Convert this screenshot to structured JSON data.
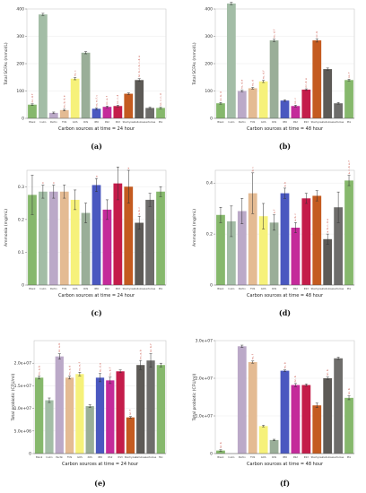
{
  "bar_colors": [
    "#86b86c",
    "#a3bda6",
    "#bba9c8",
    "#e4bb93",
    "#f6f17a",
    "#9aae98",
    "#4a58c0",
    "#c42a9a",
    "#c41c4a",
    "#c45b20",
    "#5d5a56",
    "#6e6d6b"
  ],
  "chart_data": [
    {
      "panel_label": "(a)",
      "type": "bar",
      "xlabel": "Carbon sources at time = 24 hour",
      "ylabel": "Total SCFAs (mmol/L)",
      "categories": [
        "Blank",
        "Inulin",
        "Pectin",
        "FOS",
        "GOS",
        "XOS",
        "IMO",
        "RS2",
        "RS3",
        "Stachyose",
        "Cellulose",
        "Lactulose",
        "Mix"
      ],
      "ylim": [
        0,
        400
      ],
      "yticks": [
        0,
        100,
        200,
        300,
        400
      ],
      "values": [
        50,
        380,
        20,
        30,
        145,
        240,
        35,
        42,
        45,
        90,
        140,
        38,
        38
      ],
      "errors": [
        3,
        4,
        3,
        3,
        4,
        4,
        3,
        3,
        3,
        3,
        5,
        3,
        3
      ],
      "labels": [
        "nc, d, f",
        "",
        "",
        "nc, b, d, e",
        "nc, c",
        "",
        "nc, e, f, c",
        "nc, e, f",
        "nc, c, d",
        "",
        "nc, b, c, b, c, d, e",
        "",
        "nc, c, c, d"
      ]
    },
    {
      "panel_label": "(b)",
      "type": "bar",
      "xlabel": "Carbon sources at time = 48 hour",
      "ylabel": "Total SCFAs (mmol/L)",
      "categories": [
        "Blank",
        "Inulin",
        "Pectin",
        "FOS",
        "GOS",
        "XOS",
        "IMO",
        "RS2",
        "RS3",
        "Stachyose",
        "Cellulose",
        "Lactulose",
        "Mix"
      ],
      "ylim": [
        0,
        400
      ],
      "yticks": [
        0,
        100,
        200,
        300,
        400
      ],
      "values": [
        55,
        420,
        100,
        110,
        135,
        285,
        65,
        45,
        105,
        285,
        180,
        55,
        140
      ],
      "errors": [
        3,
        4,
        3,
        3,
        4,
        4,
        3,
        3,
        3,
        6,
        4,
        3,
        3
      ],
      "labels": [
        "nc, b, d",
        "",
        "nc, d, e",
        "nc, d",
        "nc, d, f",
        "nc, d, f",
        "",
        "nc, c",
        "nc, d, e",
        "nc, b",
        "",
        "",
        "nc, f"
      ]
    },
    {
      "panel_label": "(c)",
      "type": "bar",
      "xlabel": "Carbon sources at time = 24 hour",
      "ylabel": "Ammonia (mg/mL)",
      "categories": [
        "Blank",
        "Inulin",
        "Pectin",
        "FOS",
        "GOS",
        "XOS",
        "IMO",
        "RS2",
        "RS3",
        "Stachyose",
        "Cellulose",
        "Lactulose",
        "Mix"
      ],
      "ylim": [
        0,
        0.35
      ],
      "yticks": [
        0.0,
        0.1,
        0.2,
        0.3
      ],
      "values": [
        0.275,
        0.285,
        0.285,
        0.285,
        0.26,
        0.22,
        0.305,
        0.23,
        0.31,
        0.3,
        0.19,
        0.26,
        0.285
      ],
      "errors": [
        0.06,
        0.02,
        0.02,
        0.02,
        0.03,
        0.03,
        0.02,
        0.03,
        0.05,
        0.05,
        0.02,
        0.02,
        0.015
      ],
      "labels": [
        "",
        "a",
        "a",
        "",
        "",
        "",
        "a",
        "",
        "",
        "a",
        "a, b, c",
        "",
        ""
      ]
    },
    {
      "panel_label": "(d)",
      "type": "bar",
      "xlabel": "Carbon sources at time = 48 hour",
      "ylabel": "Ammonia (mg/mL)",
      "categories": [
        "Blank",
        "Inulin",
        "Pectin",
        "FOS",
        "GOS",
        "XOS",
        "IMO",
        "RS2",
        "RS3",
        "Stachyose",
        "Cellulose",
        "Lactulose",
        "Mix"
      ],
      "ylim": [
        0,
        0.45
      ],
      "yticks": [
        0.0,
        0.2,
        0.4
      ],
      "values": [
        0.275,
        0.25,
        0.29,
        0.36,
        0.27,
        0.245,
        0.36,
        0.225,
        0.34,
        0.35,
        0.18,
        0.305,
        0.41
      ],
      "errors": [
        0.03,
        0.06,
        0.05,
        0.08,
        0.05,
        0.03,
        0.02,
        0.02,
        0.02,
        0.02,
        0.02,
        0.06,
        0.02
      ],
      "labels": [
        "",
        "",
        "",
        "b, c",
        "",
        "a, f",
        "a, b",
        "a, b, c",
        "",
        "",
        "a, b, c, d, e",
        "",
        "a, c, d, e, f"
      ]
    },
    {
      "panel_label": "(e)",
      "type": "bar",
      "xlabel": "Carbon sources at time = 24 hour",
      "ylabel": "Total probiotic (CFU/ml)",
      "categories": [
        "Blank",
        "Inulin",
        "Pectin",
        "FOS",
        "GOS",
        "XOS",
        "IMO",
        "RS2",
        "RS3",
        "Stachyose",
        "Cellulose",
        "Lactulose",
        "Mix"
      ],
      "ylim": [
        0,
        25000000
      ],
      "yticks": [
        0,
        5000000,
        10000000,
        15000000,
        20000000
      ],
      "ytick_labels": [
        "0",
        "5.0e+06",
        "1.0e+07",
        "1.5e+07",
        "2.0e+07"
      ],
      "values": [
        16800000,
        11800000,
        21500000,
        16800000,
        17600000,
        10500000,
        16800000,
        16200000,
        18200000,
        8000000,
        19600000,
        20600000,
        19600000
      ],
      "errors": [
        300000,
        500000,
        600000,
        300000,
        400000,
        300000,
        900000,
        700000,
        300000,
        200000,
        1000000,
        1500000,
        400000
      ],
      "labels": [
        "nc, a, b",
        "",
        "nc, a, b",
        "nc, a, d",
        "nc, e, f",
        "",
        "nc, d, e",
        "nc, e, f",
        "",
        "nc, f",
        "nc, a, b",
        "nc, b, f",
        ""
      ]
    },
    {
      "panel_label": "(f)",
      "type": "bar",
      "xlabel": "Carbon sources at time = 48 hour",
      "ylabel": "Total probiotic (CFU/ml)",
      "categories": [
        "Blank",
        "Inulin",
        "Pectin",
        "FOS",
        "GOS",
        "XOS",
        "IMO",
        "RS2",
        "RS3",
        "Stachyose",
        "Cellulose",
        "Lactulose",
        "Mix"
      ],
      "ylim": [
        0,
        30000000
      ],
      "yticks": [
        0,
        10000000,
        20000000,
        30000000
      ],
      "ytick_labels": [
        "0",
        "1.0e+07",
        "2.0e+07",
        "3.0e+07"
      ],
      "values": [
        800000,
        0,
        28500000,
        24300000,
        7300000,
        3600000,
        22000000,
        18200000,
        18200000,
        12800000,
        20000000,
        25300000,
        14800000
      ],
      "errors": [
        200000,
        0,
        300000,
        300000,
        200000,
        200000,
        200000,
        400000,
        300000,
        600000,
        300000,
        300000,
        500000
      ],
      "labels": [
        "nc, b",
        "",
        "",
        "nc, f",
        "",
        "",
        "nc, b",
        "nc, b",
        "",
        "",
        "nc, b",
        "",
        "nc, b"
      ]
    }
  ]
}
